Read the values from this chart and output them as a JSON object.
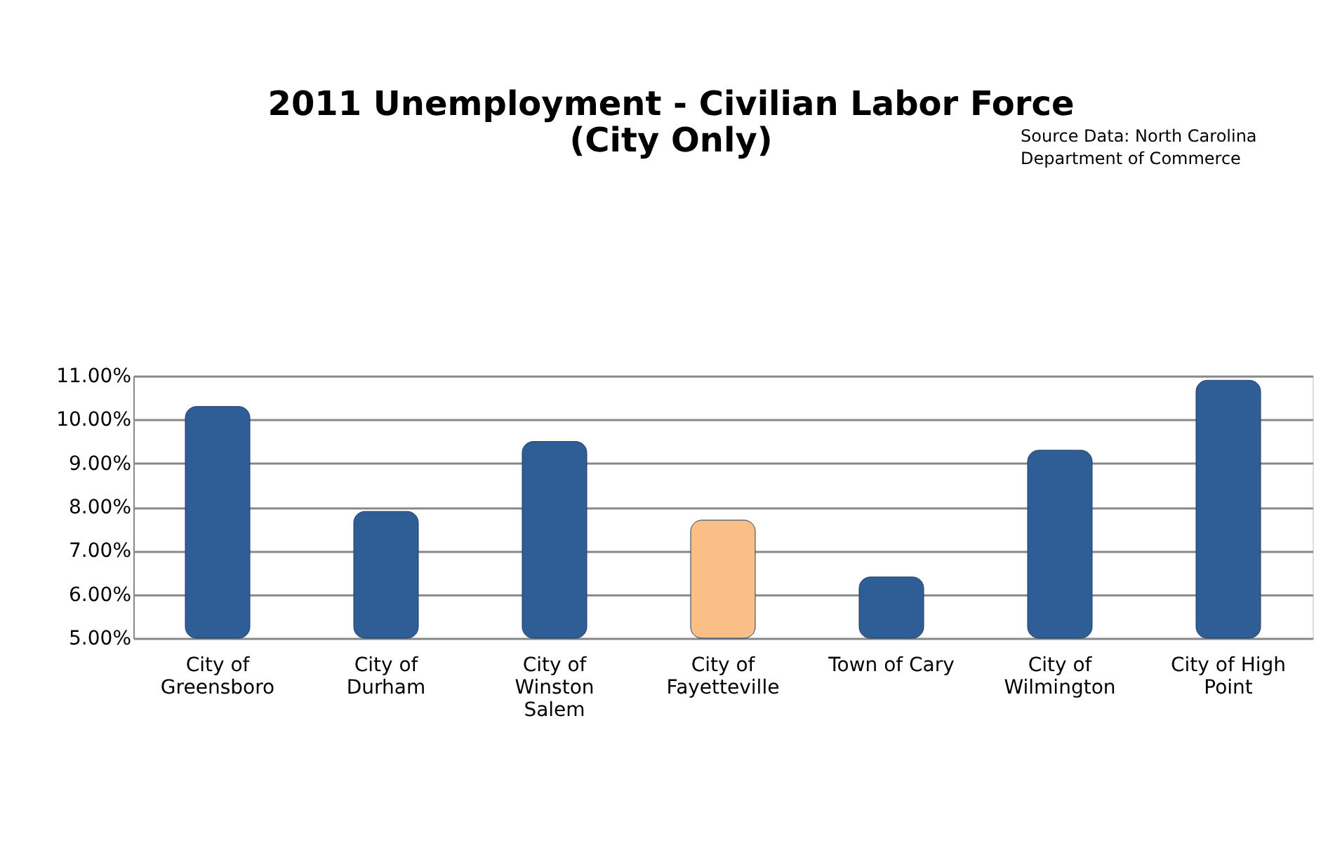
{
  "chart_data": {
    "type": "bar",
    "title": [
      "2011 Unemployment - Civilian Labor Force",
      "(City Only)"
    ],
    "annotations": [
      "Source Data: North Carolina\nDepartment of Commerce"
    ],
    "categories": [
      "City of\nGreensboro",
      "City of\nDurham",
      "City of\nWinston\nSalem",
      "City of\nFayetteville",
      "Town of Cary",
      "City of\nWilmington",
      "City of High\nPoint"
    ],
    "values": [
      10.3,
      7.9,
      9.5,
      7.7,
      6.4,
      9.3,
      10.9
    ],
    "colors": [
      "#2f5d95",
      "#2f5d95",
      "#2f5d95",
      "#f9bf86",
      "#2f5d95",
      "#2f5d95",
      "#2f5d95"
    ],
    "ylim": [
      5,
      11
    ],
    "yticks": [
      {
        "value": 5,
        "label": "5.00%"
      },
      {
        "value": 6,
        "label": "6.00%"
      },
      {
        "value": 7,
        "label": "7.00%"
      },
      {
        "value": 8,
        "label": "8.00%"
      },
      {
        "value": 9,
        "label": "9.00%"
      },
      {
        "value": 10,
        "label": "10.00%"
      },
      {
        "value": 11,
        "label": "11.00%"
      }
    ],
    "grid": "y"
  }
}
